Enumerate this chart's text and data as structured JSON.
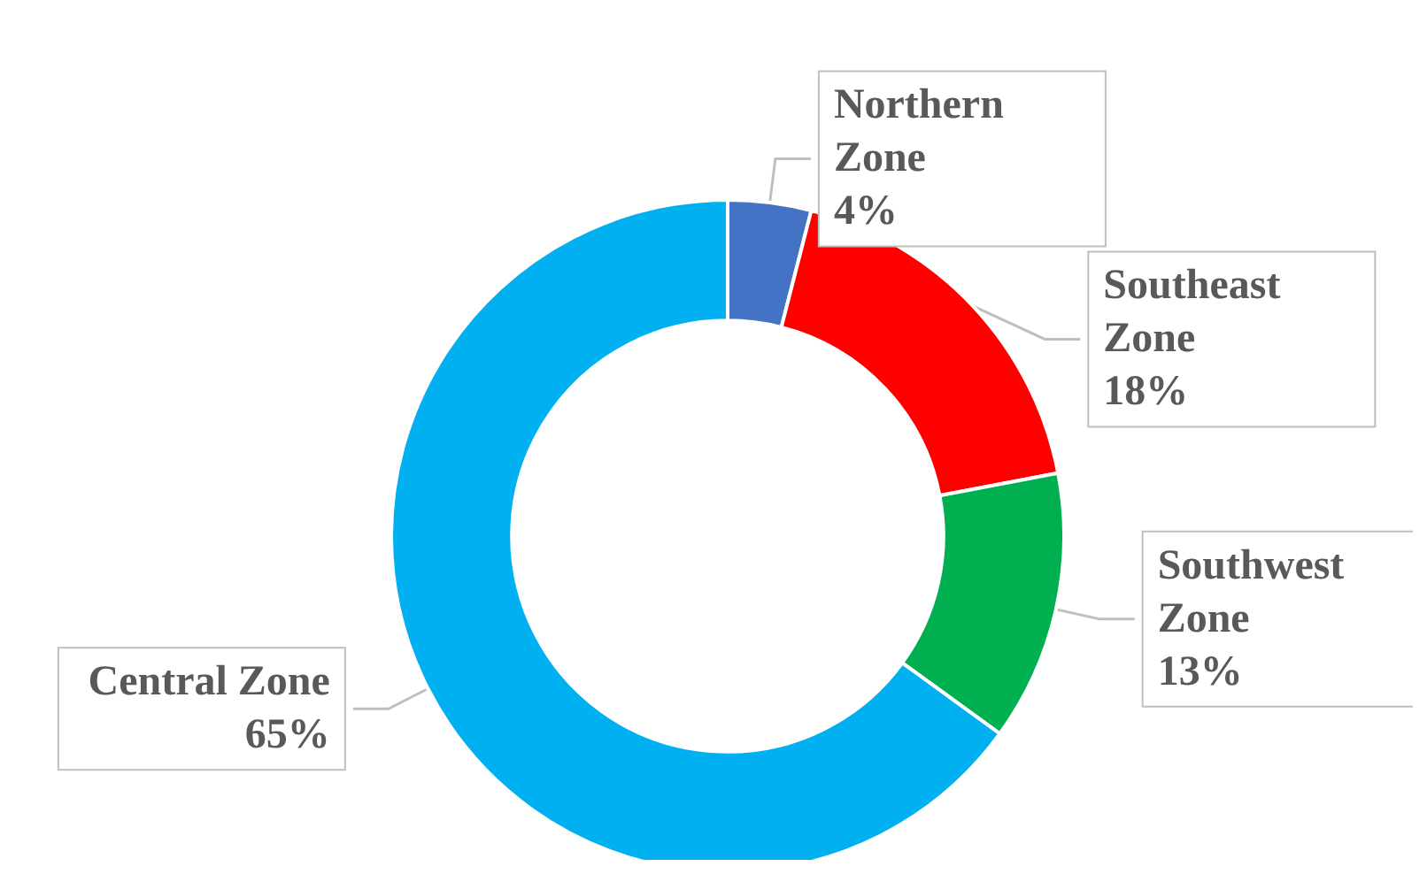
{
  "chart_data": {
    "type": "donut",
    "categories": [
      "Northern Zone",
      "Southeast Zone",
      "Southwest Zone",
      "Central Zone"
    ],
    "values": [
      4,
      18,
      13,
      65
    ],
    "value_labels": [
      "4%",
      "18%",
      "13%",
      "65%"
    ],
    "colors": [
      "#4472c4",
      "#ff0000",
      "#00b050",
      "#00b0f0"
    ],
    "legend": false
  }
}
